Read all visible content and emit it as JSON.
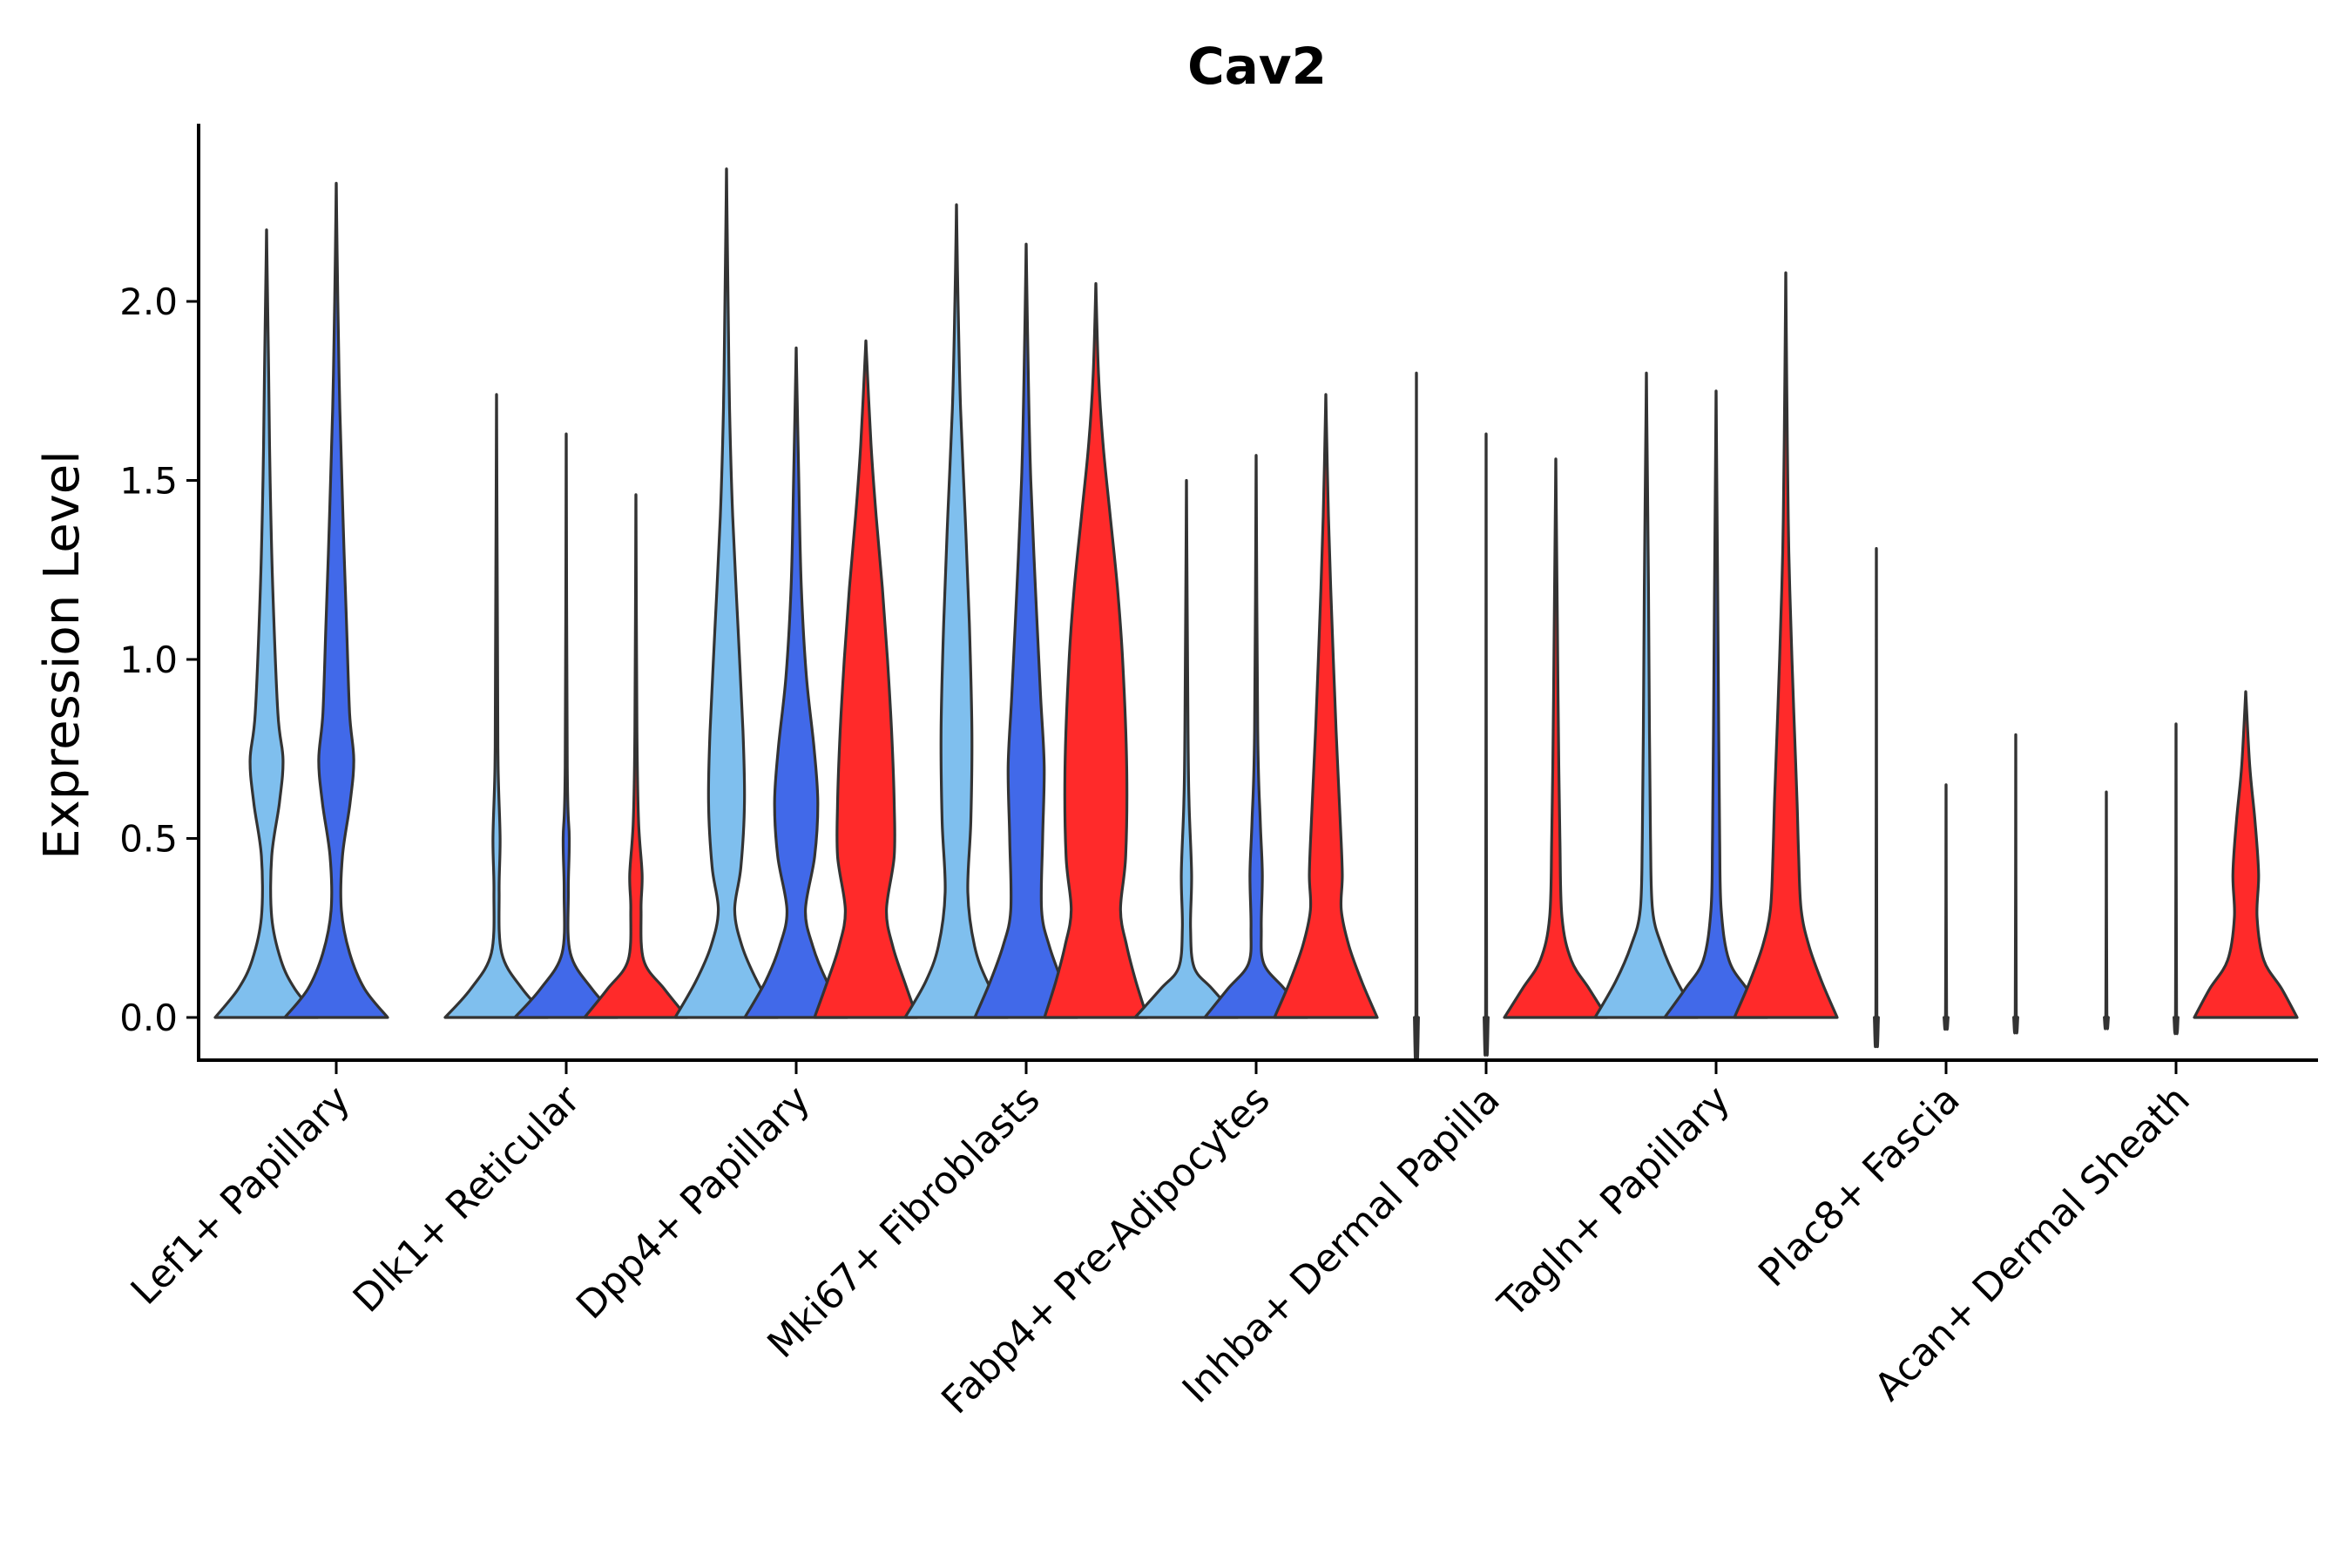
{
  "chart_data": {
    "type": "violin",
    "title": "Cav2",
    "xlabel": "",
    "ylabel": "Expression Level",
    "ylim": [
      -0.12,
      2.5
    ],
    "yticks": [
      "0.0",
      "0.5",
      "1.0",
      "1.5",
      "2.0"
    ],
    "ytick_values": [
      0.0,
      0.5,
      1.0,
      1.5,
      2.0
    ],
    "group_colors": [
      "#7fbfee",
      "#4169e9",
      "#ff2a2a"
    ],
    "categories": [
      "Lef1+ Papillary",
      "Dlk1+ Reticular",
      "Dpp4+ Papillary",
      "Mki67+ Fibroblasts",
      "Fabp4+ Pre-Adipocytes",
      "Inhba+ Dermal Papilla",
      "Tagln+ Papillary",
      "Plac8+ Fascia",
      "Acan+ Dermal Sheath"
    ],
    "violins": [
      {
        "category": 0,
        "group": 0,
        "max": 2.2,
        "shape": [
          [
            0,
            1.0
          ],
          [
            0.08,
            0.55
          ],
          [
            0.16,
            0.28
          ],
          [
            0.28,
            0.1
          ],
          [
            0.45,
            0.1
          ],
          [
            0.6,
            0.25
          ],
          [
            0.72,
            0.32
          ],
          [
            0.85,
            0.22
          ],
          [
            1.2,
            0.12
          ],
          [
            1.5,
            0.07
          ],
          [
            1.8,
            0.04
          ],
          [
            2.2,
            0
          ]
        ]
      },
      {
        "category": 0,
        "group": 1,
        "max": 2.33,
        "shape": [
          [
            0,
            1.0
          ],
          [
            0.08,
            0.55
          ],
          [
            0.18,
            0.26
          ],
          [
            0.3,
            0.1
          ],
          [
            0.45,
            0.12
          ],
          [
            0.6,
            0.27
          ],
          [
            0.72,
            0.34
          ],
          [
            0.85,
            0.26
          ],
          [
            1.1,
            0.2
          ],
          [
            1.4,
            0.13
          ],
          [
            1.7,
            0.07
          ],
          [
            2.0,
            0.03
          ],
          [
            2.33,
            0
          ]
        ]
      },
      {
        "category": 1,
        "group": 0,
        "max": 1.74,
        "shape": [
          [
            0,
            1.0
          ],
          [
            0.08,
            0.5
          ],
          [
            0.18,
            0.1
          ],
          [
            0.35,
            0.05
          ],
          [
            0.5,
            0.07
          ],
          [
            0.7,
            0.03
          ],
          [
            1.0,
            0.02
          ],
          [
            1.74,
            0
          ]
        ]
      },
      {
        "category": 1,
        "group": 1,
        "max": 1.63,
        "shape": [
          [
            0,
            1.0
          ],
          [
            0.08,
            0.5
          ],
          [
            0.18,
            0.08
          ],
          [
            0.35,
            0.04
          ],
          [
            0.5,
            0.06
          ],
          [
            0.7,
            0.02
          ],
          [
            1.63,
            0
          ]
        ]
      },
      {
        "category": 1,
        "group": 2,
        "max": 1.46,
        "shape": [
          [
            0,
            1.0
          ],
          [
            0.08,
            0.55
          ],
          [
            0.16,
            0.15
          ],
          [
            0.3,
            0.1
          ],
          [
            0.4,
            0.12
          ],
          [
            0.55,
            0.05
          ],
          [
            0.8,
            0.02
          ],
          [
            1.46,
            0
          ]
        ]
      },
      {
        "category": 2,
        "group": 0,
        "max": 2.37,
        "shape": [
          [
            0,
            1.0
          ],
          [
            0.1,
            0.6
          ],
          [
            0.2,
            0.3
          ],
          [
            0.3,
            0.16
          ],
          [
            0.42,
            0.28
          ],
          [
            0.6,
            0.35
          ],
          [
            0.8,
            0.32
          ],
          [
            1.1,
            0.22
          ],
          [
            1.4,
            0.12
          ],
          [
            1.7,
            0.06
          ],
          [
            2.0,
            0.03
          ],
          [
            2.37,
            0
          ]
        ]
      },
      {
        "category": 2,
        "group": 1,
        "max": 1.87,
        "shape": [
          [
            0,
            1.0
          ],
          [
            0.1,
            0.6
          ],
          [
            0.2,
            0.32
          ],
          [
            0.3,
            0.18
          ],
          [
            0.45,
            0.36
          ],
          [
            0.6,
            0.42
          ],
          [
            0.75,
            0.35
          ],
          [
            0.95,
            0.2
          ],
          [
            1.2,
            0.1
          ],
          [
            1.5,
            0.05
          ],
          [
            1.87,
            0
          ]
        ]
      },
      {
        "category": 2,
        "group": 2,
        "max": 1.89,
        "shape": [
          [
            0,
            1.0
          ],
          [
            0.1,
            0.75
          ],
          [
            0.2,
            0.52
          ],
          [
            0.3,
            0.4
          ],
          [
            0.45,
            0.55
          ],
          [
            0.6,
            0.55
          ],
          [
            0.8,
            0.5
          ],
          [
            1.0,
            0.42
          ],
          [
            1.2,
            0.32
          ],
          [
            1.4,
            0.2
          ],
          [
            1.6,
            0.1
          ],
          [
            1.89,
            0
          ]
        ]
      },
      {
        "category": 3,
        "group": 0,
        "max": 2.27,
        "shape": [
          [
            0,
            1.0
          ],
          [
            0.1,
            0.6
          ],
          [
            0.2,
            0.35
          ],
          [
            0.35,
            0.22
          ],
          [
            0.55,
            0.28
          ],
          [
            0.8,
            0.3
          ],
          [
            1.1,
            0.25
          ],
          [
            1.4,
            0.17
          ],
          [
            1.7,
            0.08
          ],
          [
            2.0,
            0.03
          ],
          [
            2.27,
            0
          ]
        ]
      },
      {
        "category": 3,
        "group": 1,
        "max": 2.16,
        "shape": [
          [
            0,
            1.0
          ],
          [
            0.1,
            0.7
          ],
          [
            0.2,
            0.45
          ],
          [
            0.3,
            0.3
          ],
          [
            0.5,
            0.32
          ],
          [
            0.7,
            0.35
          ],
          [
            0.9,
            0.28
          ],
          [
            1.2,
            0.18
          ],
          [
            1.5,
            0.09
          ],
          [
            1.8,
            0.04
          ],
          [
            2.16,
            0
          ]
        ]
      },
      {
        "category": 3,
        "group": 2,
        "max": 2.05,
        "shape": [
          [
            0,
            1.0
          ],
          [
            0.1,
            0.78
          ],
          [
            0.2,
            0.6
          ],
          [
            0.3,
            0.48
          ],
          [
            0.45,
            0.58
          ],
          [
            0.7,
            0.6
          ],
          [
            1.0,
            0.52
          ],
          [
            1.2,
            0.42
          ],
          [
            1.4,
            0.28
          ],
          [
            1.6,
            0.14
          ],
          [
            1.8,
            0.05
          ],
          [
            2.05,
            0
          ]
        ]
      },
      {
        "category": 4,
        "group": 0,
        "max": 1.5,
        "shape": [
          [
            0,
            1.0
          ],
          [
            0.08,
            0.5
          ],
          [
            0.14,
            0.15
          ],
          [
            0.25,
            0.08
          ],
          [
            0.4,
            0.1
          ],
          [
            0.6,
            0.05
          ],
          [
            0.8,
            0.03
          ],
          [
            1.5,
            0
          ]
        ]
      },
      {
        "category": 4,
        "group": 1,
        "max": 1.57,
        "shape": [
          [
            0,
            1.0
          ],
          [
            0.08,
            0.55
          ],
          [
            0.15,
            0.15
          ],
          [
            0.25,
            0.1
          ],
          [
            0.4,
            0.12
          ],
          [
            0.55,
            0.08
          ],
          [
            0.8,
            0.03
          ],
          [
            1.57,
            0
          ]
        ]
      },
      {
        "category": 4,
        "group": 2,
        "max": 1.74,
        "shape": [
          [
            0,
            1.0
          ],
          [
            0.1,
            0.7
          ],
          [
            0.2,
            0.45
          ],
          [
            0.3,
            0.3
          ],
          [
            0.4,
            0.32
          ],
          [
            0.55,
            0.28
          ],
          [
            0.8,
            0.2
          ],
          [
            1.1,
            0.12
          ],
          [
            1.4,
            0.05
          ],
          [
            1.74,
            0
          ]
        ]
      },
      {
        "category": 5,
        "group": 0,
        "max": 1.8,
        "shape": [
          [
            0,
            0.04
          ],
          [
            0.02,
            0.01
          ],
          [
            1.8,
            0
          ]
        ]
      },
      {
        "category": 5,
        "group": 1,
        "max": 1.63,
        "shape": [
          [
            0,
            0.04
          ],
          [
            0.02,
            0.01
          ],
          [
            1.63,
            0
          ]
        ]
      },
      {
        "category": 5,
        "group": 2,
        "max": 1.56,
        "shape": [
          [
            0,
            1.0
          ],
          [
            0.08,
            0.65
          ],
          [
            0.16,
            0.3
          ],
          [
            0.28,
            0.12
          ],
          [
            0.5,
            0.08
          ],
          [
            0.8,
            0.05
          ],
          [
            1.1,
            0.03
          ],
          [
            1.56,
            0
          ]
        ]
      },
      {
        "category": 6,
        "group": 0,
        "max": 1.8,
        "shape": [
          [
            0,
            1.0
          ],
          [
            0.1,
            0.6
          ],
          [
            0.2,
            0.3
          ],
          [
            0.3,
            0.12
          ],
          [
            0.5,
            0.08
          ],
          [
            0.8,
            0.06
          ],
          [
            1.2,
            0.04
          ],
          [
            1.8,
            0
          ]
        ]
      },
      {
        "category": 6,
        "group": 1,
        "max": 1.75,
        "shape": [
          [
            0,
            1.0
          ],
          [
            0.08,
            0.6
          ],
          [
            0.16,
            0.25
          ],
          [
            0.3,
            0.1
          ],
          [
            0.5,
            0.07
          ],
          [
            0.8,
            0.05
          ],
          [
            1.2,
            0.03
          ],
          [
            1.75,
            0
          ]
        ]
      },
      {
        "category": 6,
        "group": 2,
        "max": 2.08,
        "shape": [
          [
            0,
            1.0
          ],
          [
            0.1,
            0.7
          ],
          [
            0.2,
            0.45
          ],
          [
            0.3,
            0.3
          ],
          [
            0.45,
            0.25
          ],
          [
            0.6,
            0.22
          ],
          [
            0.8,
            0.17
          ],
          [
            1.0,
            0.12
          ],
          [
            1.3,
            0.06
          ],
          [
            1.6,
            0.03
          ],
          [
            2.08,
            0
          ]
        ]
      },
      {
        "category": 7,
        "group": 0,
        "max": 1.31,
        "shape": [
          [
            0,
            0.04
          ],
          [
            0.02,
            0.01
          ],
          [
            1.31,
            0
          ]
        ]
      },
      {
        "category": 7,
        "group": 1,
        "max": 0.65,
        "shape": [
          [
            0,
            0.04
          ],
          [
            0.02,
            0.01
          ],
          [
            0.65,
            0
          ]
        ]
      },
      {
        "category": 7,
        "group": 2,
        "max": 0.79,
        "shape": [
          [
            0,
            0.04
          ],
          [
            0.02,
            0.01
          ],
          [
            0.79,
            0
          ]
        ]
      },
      {
        "category": 8,
        "group": 0,
        "max": 0.63,
        "shape": [
          [
            0,
            0.04
          ],
          [
            0.02,
            0.01
          ],
          [
            0.63,
            0
          ]
        ]
      },
      {
        "category": 8,
        "group": 1,
        "max": 0.82,
        "shape": [
          [
            0,
            0.04
          ],
          [
            0.02,
            0.01
          ],
          [
            0.82,
            0
          ]
        ]
      },
      {
        "category": 8,
        "group": 2,
        "max": 0.91,
        "shape": [
          [
            0,
            1.0
          ],
          [
            0.08,
            0.7
          ],
          [
            0.16,
            0.35
          ],
          [
            0.28,
            0.22
          ],
          [
            0.4,
            0.25
          ],
          [
            0.55,
            0.18
          ],
          [
            0.7,
            0.08
          ],
          [
            0.91,
            0
          ]
        ]
      }
    ]
  }
}
